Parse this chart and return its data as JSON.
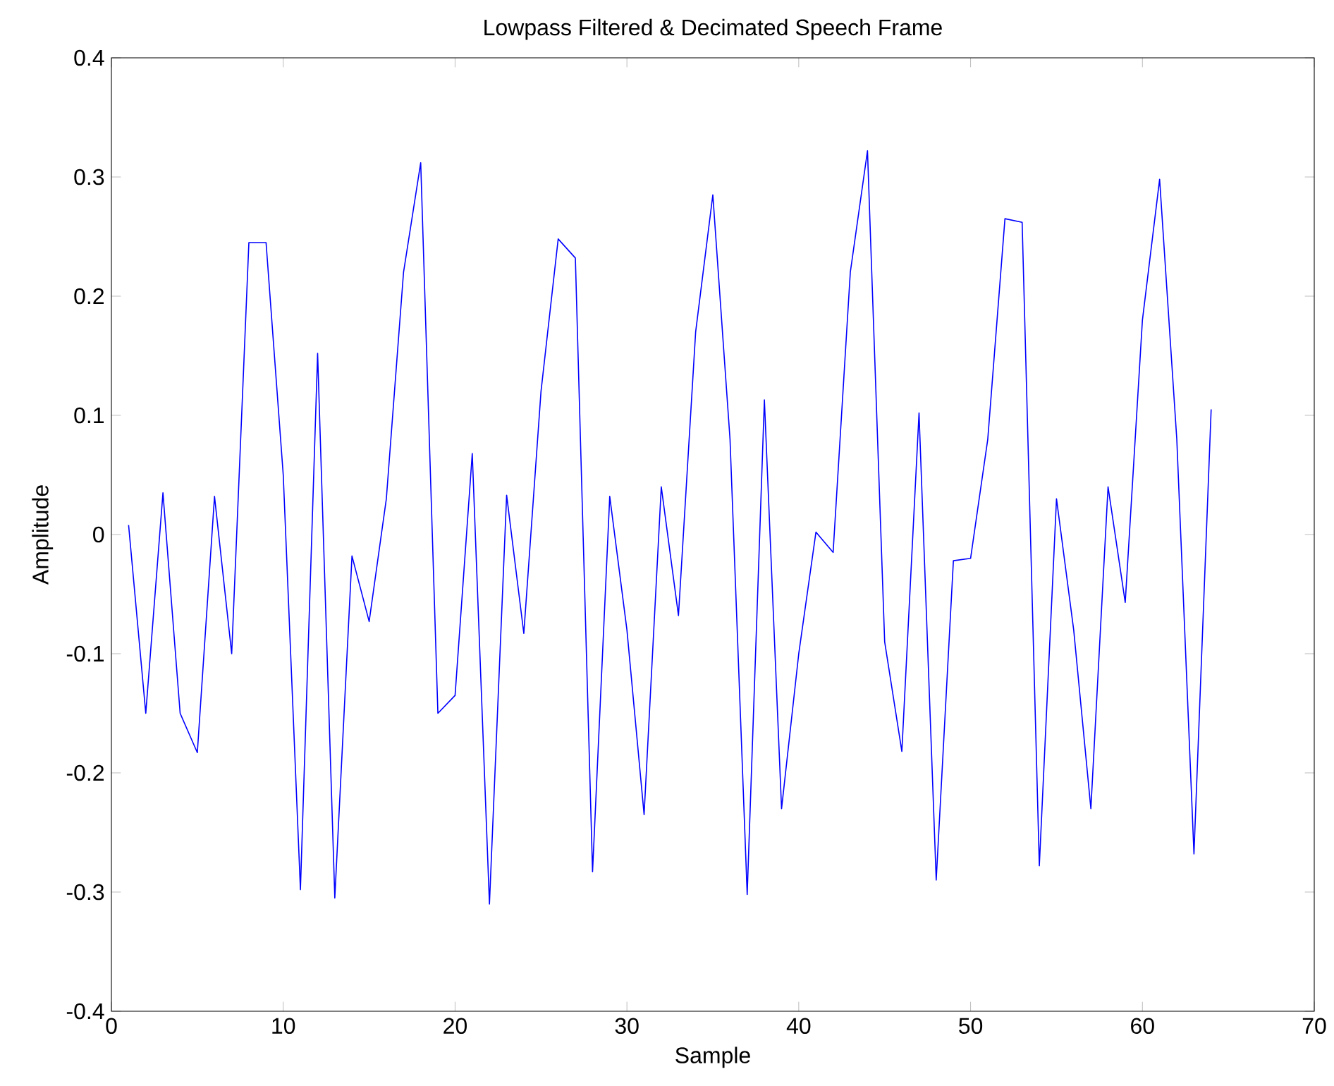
{
  "chart_data": {
    "type": "line",
    "title": "Lowpass Filtered & Decimated Speech Frame",
    "xlabel": "Sample",
    "ylabel": "Amplitude",
    "x": [
      1,
      2,
      3,
      4,
      5,
      6,
      7,
      8,
      9,
      10,
      11,
      12,
      13,
      14,
      15,
      16,
      17,
      18,
      19,
      20,
      21,
      22,
      23,
      24,
      25,
      26,
      27,
      28,
      29,
      30,
      31,
      32,
      33,
      34,
      35,
      36,
      37,
      38,
      39,
      40,
      41,
      42,
      43,
      44,
      45,
      46,
      47,
      48,
      49,
      50,
      51,
      52,
      53,
      54,
      55,
      56,
      57,
      58,
      59,
      60,
      61,
      62,
      63,
      64
    ],
    "series": [
      {
        "color": "#0000ff",
        "values": [
          0.008,
          -0.15,
          0.035,
          -0.15,
          -0.183,
          0.032,
          -0.1,
          0.245,
          0.245,
          0.05,
          -0.298,
          0.152,
          -0.305,
          -0.018,
          -0.073,
          0.03,
          0.22,
          0.312,
          -0.15,
          -0.135,
          0.068,
          -0.31,
          0.033,
          -0.083,
          0.12,
          0.248,
          0.232,
          -0.283,
          0.032,
          -0.08,
          -0.235,
          0.04,
          -0.068,
          0.17,
          0.285,
          0.08,
          -0.302,
          0.113,
          -0.23,
          -0.1,
          0.002,
          -0.015,
          0.22,
          0.322,
          -0.09,
          -0.182,
          0.102,
          -0.29,
          -0.022,
          -0.02,
          0.08,
          0.265,
          0.262,
          -0.278,
          0.03,
          -0.08,
          -0.23,
          0.04,
          -0.057,
          0.18,
          0.298,
          0.08,
          -0.268,
          0.105
        ]
      }
    ],
    "xlim": [
      0,
      70
    ],
    "ylim": [
      -0.4,
      0.4
    ],
    "xticks": [
      0,
      10,
      20,
      30,
      40,
      50,
      60,
      70
    ],
    "yticks": [
      -0.4,
      -0.3,
      -0.2,
      -0.1,
      0,
      0.1,
      0.2,
      0.3,
      0.4
    ],
    "grid": false,
    "marker": "none",
    "line_style": "solid"
  }
}
